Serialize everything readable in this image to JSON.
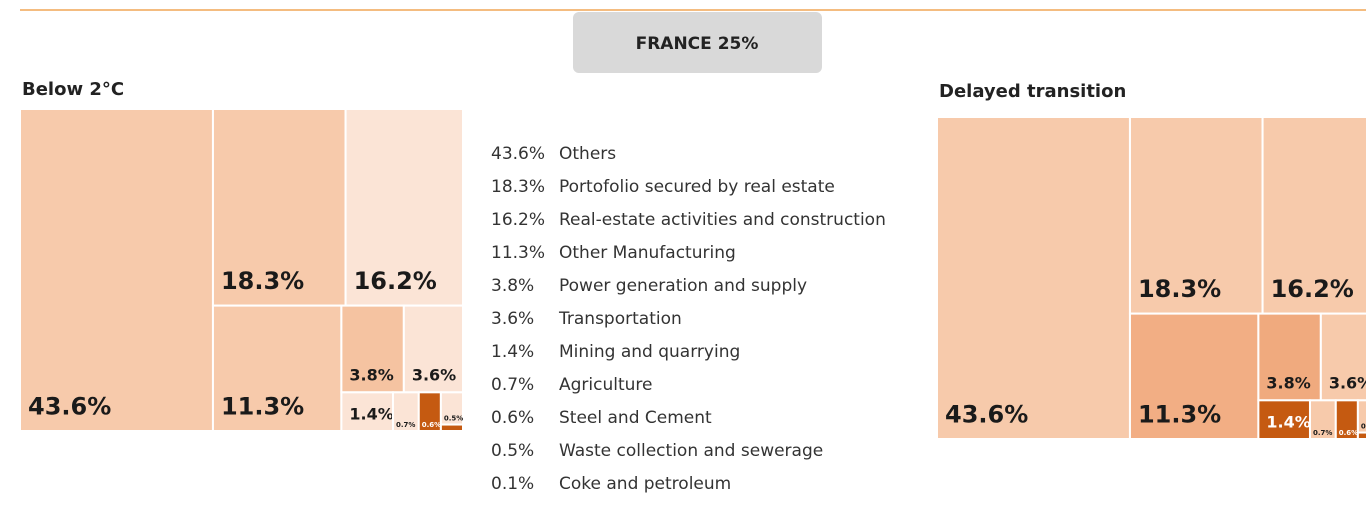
{
  "header": "FRANCE 25%",
  "chart_data": {
    "type": "treemap",
    "categories": [
      "Others",
      "Portofolio secured by real estate",
      "Real-estate activities and construction",
      "Other Manufacturing",
      "Power generation and supply",
      "Transportation",
      "Mining and quarrying",
      "Agriculture",
      "Steel and Cement",
      "Waste collection and sewerage",
      "Coke and petroleum"
    ],
    "series": [
      {
        "name": "Below 2°C",
        "values": [
          43.6,
          18.3,
          16.2,
          11.3,
          3.8,
          3.6,
          1.4,
          0.7,
          0.6,
          0.5,
          0.1
        ],
        "value_labels": [
          "43.6%",
          "18.3%",
          "16.2%",
          "11.3%",
          "3.8%",
          "3.6%",
          "1.4%",
          "0.7%",
          "0.6%",
          "0.5%",
          "0.1%"
        ],
        "colors": [
          "#f7caab",
          "#f7caab",
          "#fbe4d6",
          "#f7caab",
          "#f5c3a1",
          "#fbe4d6",
          "#fbe4d6",
          "#fbe4d6",
          "#c55a11",
          "#fbe4d6",
          "#c55a11"
        ]
      },
      {
        "name": "Delayed transition",
        "values": [
          43.6,
          18.3,
          16.2,
          11.3,
          3.8,
          3.6,
          1.4,
          0.7,
          0.6,
          0.5,
          0.1
        ],
        "value_labels": [
          "43.6%",
          "18.3%",
          "16.2%",
          "11.3%",
          "3.8%",
          "3.6%",
          "1.4%",
          "0.7%",
          "0.6%",
          "0.5%",
          "0.1%"
        ],
        "colors": [
          "#f7caab",
          "#f7caab",
          "#f7caab",
          "#f2ae84",
          "#f0aa7e",
          "#f7caab",
          "#c55a11",
          "#f7caab",
          "#c55a11",
          "#f7caab",
          "#c55a11"
        ]
      }
    ]
  }
}
